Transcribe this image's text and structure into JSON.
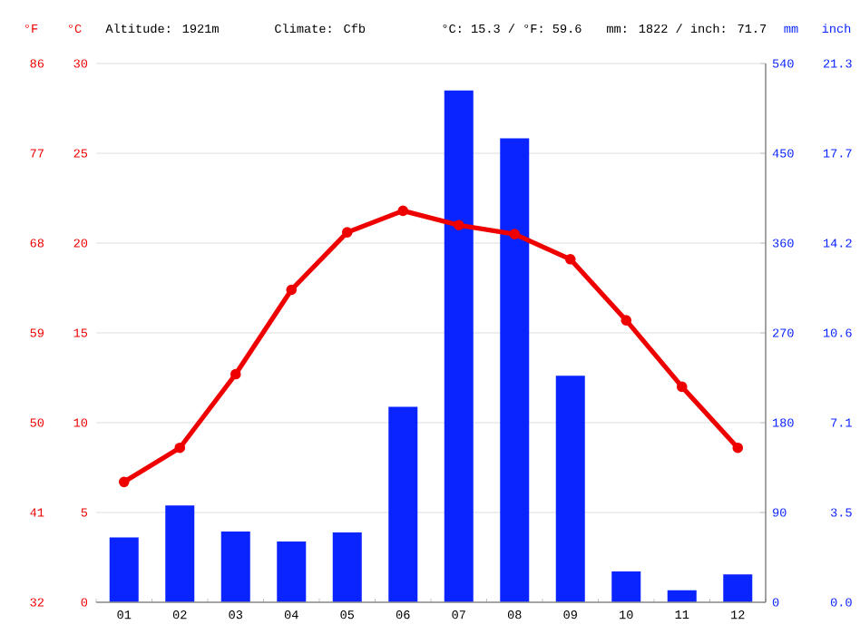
{
  "chart_data": {
    "type": "bar",
    "categories": [
      "01",
      "02",
      "03",
      "04",
      "05",
      "06",
      "07",
      "08",
      "09",
      "10",
      "11",
      "12"
    ],
    "series": [
      {
        "axis": "y2",
        "color": "#0a24ff",
        "values": [
          65,
          97,
          71,
          61,
          70,
          196,
          513,
          465,
          227,
          31,
          12,
          28
        ]
      },
      {
        "type": "line",
        "color": "#ee0000",
        "marker": "circle",
        "line_style": "solid",
        "values": [
          6.7,
          8.6,
          12.7,
          17.4,
          20.6,
          21.8,
          21.0,
          20.5,
          19.1,
          15.7,
          12.0,
          8.6
        ]
      }
    ],
    "ylabel": "°C",
    "ylim": [
      0,
      30
    ],
    "yticks": [
      0,
      5,
      10,
      15,
      20,
      25,
      30
    ],
    "y2label": "mm",
    "y2lim": [
      0,
      540
    ],
    "y2ticks": [
      0,
      90,
      180,
      270,
      360,
      450,
      540
    ],
    "y3label": "°F",
    "y3lim": [
      32,
      86
    ],
    "y3ticks": [
      32,
      41,
      50,
      59,
      68,
      77,
      86
    ],
    "annotations": [
      "Altitude: 1921m",
      "Climate: Cfb",
      "°C: 15.3 / °F: 59.6",
      "mm: 1822 / inch: 71.7",
      "inch",
      "0.0",
      "3.5",
      "7.1",
      "10.6",
      "14.2",
      "17.7",
      "21.3"
    ],
    "grid": "y"
  }
}
